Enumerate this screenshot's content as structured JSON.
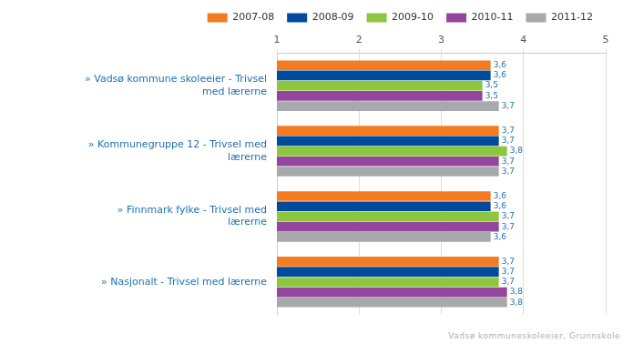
{
  "chart_data": {
    "type": "bar",
    "orientation": "horizontal",
    "categories": [
      "» Vadsø kommune skoleeier - Trivsel med lærerne",
      "» Kommunegruppe 12 - Trivsel med lærerne",
      "» Finnmark fylke - Trivsel med lærerne",
      "» Nasjonalt - Trivsel med lærerne"
    ],
    "series": [
      {
        "name": "2007-08",
        "color": "#f47b20",
        "values": [
          3.6,
          3.7,
          3.6,
          3.7
        ],
        "value_labels": [
          "3,6",
          "3,7",
          "3,6",
          "3,7"
        ]
      },
      {
        "name": "2008-09",
        "color": "#004b9b",
        "values": [
          3.6,
          3.7,
          3.6,
          3.7
        ],
        "value_labels": [
          "3,6",
          "3,7",
          "3,6",
          "3,7"
        ]
      },
      {
        "name": "2009-10",
        "color": "#8dc63f",
        "values": [
          3.5,
          3.8,
          3.7,
          3.7
        ],
        "value_labels": [
          "3,5",
          "3,8",
          "3,7",
          "3,7"
        ]
      },
      {
        "name": "2010-11",
        "color": "#93469b",
        "values": [
          3.5,
          3.7,
          3.7,
          3.8
        ],
        "value_labels": [
          "3,5",
          "3,7",
          "3,7",
          "3,8"
        ]
      },
      {
        "name": "2011-12",
        "color": "#a7a9ac",
        "values": [
          3.7,
          3.7,
          3.6,
          3.8
        ],
        "value_labels": [
          "3,7",
          "3,7",
          "3,6",
          "3,8"
        ]
      }
    ],
    "xlim": [
      1,
      5
    ],
    "xticks": [
      1,
      2,
      3,
      4,
      5
    ],
    "grid": true,
    "legend": "top-right",
    "data_labels": true,
    "annotations": [
      "Vadsø kommuneskoleeier, Grunnskole"
    ]
  }
}
